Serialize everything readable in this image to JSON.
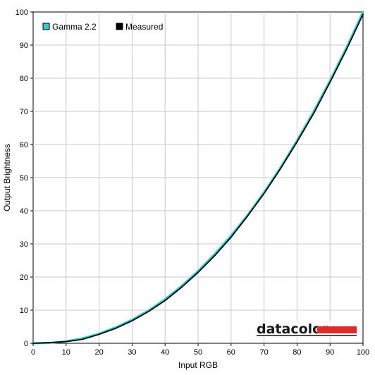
{
  "chart_data": {
    "type": "line",
    "title": "",
    "xlabel": "Input RGB",
    "ylabel": "Output Brightness",
    "xlim": [
      0,
      100
    ],
    "ylim": [
      0,
      100
    ],
    "xticks": [
      0,
      10,
      20,
      30,
      40,
      50,
      60,
      70,
      80,
      90,
      100
    ],
    "yticks": [
      0,
      10,
      20,
      30,
      40,
      50,
      60,
      70,
      80,
      90,
      100
    ],
    "grid": true,
    "legend_position": "top-left",
    "x": [
      0,
      5,
      10,
      15,
      20,
      25,
      30,
      35,
      40,
      45,
      50,
      55,
      60,
      65,
      70,
      75,
      80,
      85,
      90,
      95,
      100
    ],
    "series": [
      {
        "name": "Gamma 2.2",
        "color": "#33cccc",
        "values": [
          0,
          0.1,
          0.6,
          1.5,
          2.9,
          4.8,
          7.1,
          9.9,
          13.3,
          17.3,
          21.8,
          26.9,
          32.5,
          38.7,
          45.6,
          53.1,
          61.2,
          69.9,
          79.3,
          89.3,
          100
        ]
      },
      {
        "name": "Measured",
        "color": "#000000",
        "values": [
          0,
          0.2,
          0.5,
          1.2,
          2.7,
          4.5,
          6.8,
          9.6,
          12.9,
          16.9,
          21.4,
          26.4,
          32.0,
          38.4,
          45.2,
          52.7,
          60.8,
          69.3,
          78.8,
          88.7,
          99.3
        ]
      }
    ]
  },
  "watermark": {
    "brand": "datacolor",
    "accent_color": "#e02a2a"
  }
}
